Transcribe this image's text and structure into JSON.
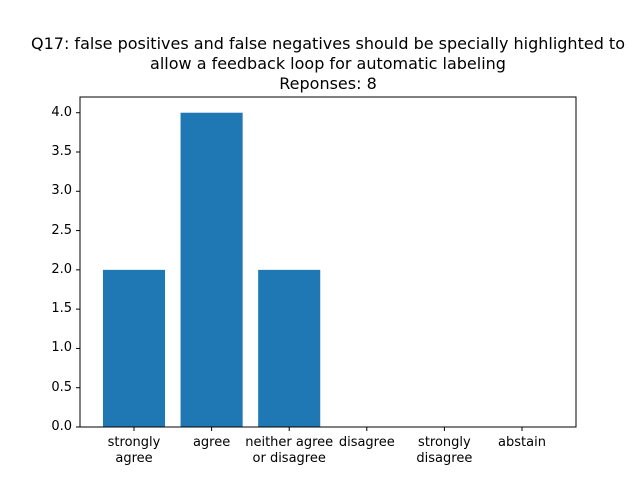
{
  "chart_data": {
    "type": "bar",
    "title": [
      "Q17: false positives and false negatives should be specially highlighted to",
      "allow a feedback loop for automatic labeling",
      "Reponses: 8"
    ],
    "categories": [
      "strongly\nagree",
      "agree",
      "neither agree\nor disagree",
      "disagree",
      "strongly\ndisagree",
      "abstain"
    ],
    "values": [
      2,
      4,
      2,
      0,
      0,
      0
    ],
    "color": "#1f77b4",
    "ylim": [
      0,
      4.2
    ],
    "yticks": [
      {
        "value": 0,
        "label": "0.0"
      },
      {
        "value": 0.5,
        "label": "0.5"
      },
      {
        "value": 1,
        "label": "1.0"
      },
      {
        "value": 1.5,
        "label": "1.5"
      },
      {
        "value": 2,
        "label": "2.0"
      },
      {
        "value": 2.5,
        "label": "2.5"
      },
      {
        "value": 3,
        "label": "3.0"
      },
      {
        "value": 3.5,
        "label": "3.5"
      },
      {
        "value": 4,
        "label": "4.0"
      }
    ]
  }
}
